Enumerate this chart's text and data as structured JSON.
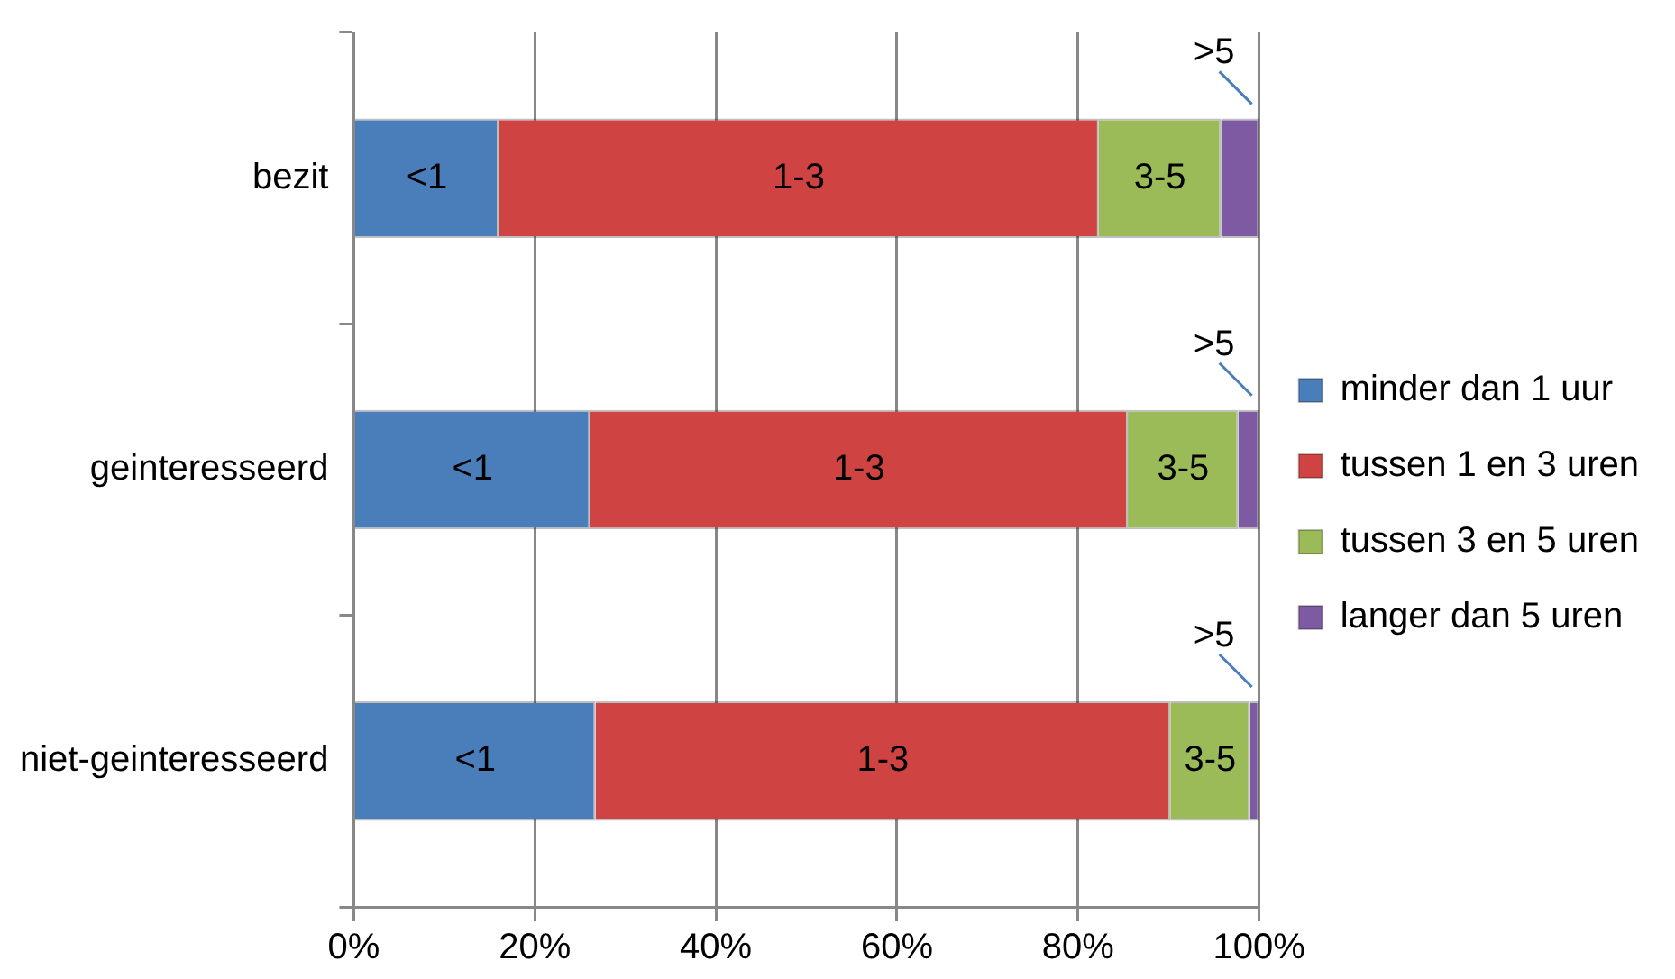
{
  "chart_data": {
    "type": "bar",
    "orientation": "horizontal",
    "stacked": true,
    "categories": [
      "bezit",
      "geinteresseerd",
      "niet-geinteresseerd"
    ],
    "series": [
      {
        "name": "minder dan 1 uur",
        "color": "#4a7ebb",
        "values": [
          16.0,
          26.1,
          26.7
        ],
        "value_labels": [
          "<1",
          "<1",
          "<1"
        ]
      },
      {
        "name": "tussen 1 en 3 uren",
        "color": "#d04343",
        "values": [
          66.3,
          59.4,
          63.5
        ],
        "value_labels": [
          "1-3",
          "1-3",
          "1-3"
        ]
      },
      {
        "name": "tussen 3 en 5 uren",
        "color": "#9bbb59",
        "values": [
          13.5,
          12.2,
          8.8
        ],
        "value_labels": [
          "3-5",
          "3-5",
          "3-5"
        ]
      },
      {
        "name": "langer dan 5 uren",
        "color": "#7e5aa3",
        "values": [
          4.2,
          2.3,
          1.0
        ],
        "value_labels": [
          ">5",
          ">5",
          ">5"
        ]
      }
    ],
    "xlim": [
      0,
      100
    ],
    "xticks": [
      {
        "value": 0,
        "label": "0%"
      },
      {
        "value": 20,
        "label": "20%"
      },
      {
        "value": 40,
        "label": "40%"
      },
      {
        "value": 60,
        "label": "60%"
      },
      {
        "value": 80,
        "label": "80%"
      },
      {
        "value": 100,
        "label": "100%"
      }
    ],
    "grid": "x",
    "legend": "right"
  }
}
